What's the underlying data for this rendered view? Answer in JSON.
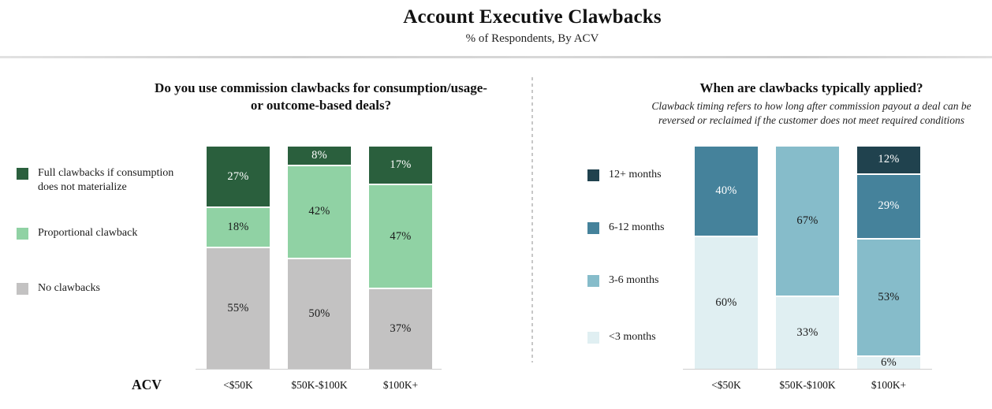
{
  "header": {
    "title": "Account Executive Clawbacks",
    "subtitle": "% of Respondents, By ACV"
  },
  "chart_data": [
    {
      "type": "bar",
      "stacked": true,
      "title": "Do you use commission clawbacks for consumption/usage- or outcome-based deals?",
      "categories": [
        "<$50K",
        "$50K-$100K",
        "$100K+"
      ],
      "series": [
        {
          "name": "Full clawbacks if consumption does not materialize",
          "color": "#2A5F3D",
          "values": [
            27,
            8,
            17
          ]
        },
        {
          "name": "Proportional clawback",
          "color": "#90D2A4",
          "values": [
            18,
            42,
            47
          ]
        },
        {
          "name": "No clawbacks",
          "color": "#C3C2C2",
          "values": [
            55,
            50,
            37
          ]
        }
      ],
      "value_suffix": "%",
      "xlabel": "ACV",
      "ylim": [
        0,
        100
      ],
      "legend_position": "left",
      "grid": false
    },
    {
      "type": "bar",
      "stacked": true,
      "title": "When are clawbacks typically applied?",
      "subtitle": "Clawback timing refers to how long after commission payout a deal can be reversed or reclaimed if the customer does not meet required conditions",
      "categories": [
        "<$50K",
        "$50K-$100K",
        "$100K+"
      ],
      "series": [
        {
          "name": "12+ months",
          "color": "#20424E",
          "values": [
            0,
            0,
            12
          ]
        },
        {
          "name": "6-12 months",
          "color": "#45829B",
          "values": [
            40,
            0,
            29
          ]
        },
        {
          "name": "3-6 months",
          "color": "#86BCCA",
          "values": [
            0,
            67,
            53
          ]
        },
        {
          "name": "<3 months",
          "color": "#E0EFF2",
          "values": [
            60,
            33,
            6
          ]
        }
      ],
      "value_suffix": "%",
      "xlabel": "",
      "ylim": [
        0,
        100
      ],
      "legend_position": "left",
      "grid": false
    }
  ]
}
